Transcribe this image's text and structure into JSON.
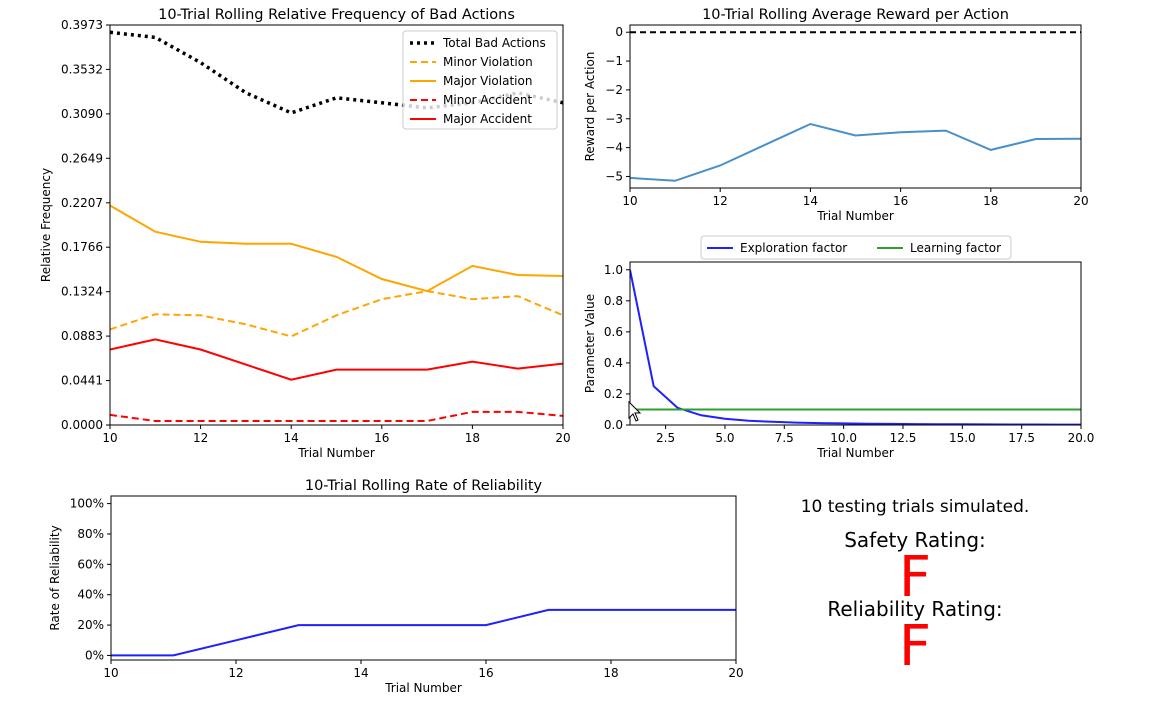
{
  "chart_data": [
    {
      "id": "bad_actions",
      "type": "line",
      "title": "10-Trial Rolling Relative Frequency of Bad Actions",
      "xlabel": "Trial Number",
      "ylabel": "Relative Frequency",
      "xlim": [
        10,
        20
      ],
      "ylim": [
        0,
        0.3973
      ],
      "xticks": [
        10,
        12,
        14,
        16,
        18,
        20
      ],
      "yticks": [
        "0.0000",
        "0.0441",
        "0.0883",
        "0.1324",
        "0.1766",
        "0.2207",
        "0.2649",
        "0.3090",
        "0.3532",
        "0.3973"
      ],
      "legend_position": "top-right",
      "x": [
        10,
        11,
        12,
        13,
        14,
        15,
        16,
        17,
        18,
        19,
        20
      ],
      "series": [
        {
          "name": "Total Bad Actions",
          "color": "#000000",
          "style": "dotted",
          "values": [
            0.39,
            0.385,
            0.36,
            0.33,
            0.31,
            0.325,
            0.32,
            0.315,
            0.32,
            0.33,
            0.32
          ]
        },
        {
          "name": "Minor Violation",
          "color": "#ffa500",
          "style": "dashed",
          "values": [
            0.095,
            0.11,
            0.109,
            0.1,
            0.088,
            0.109,
            0.125,
            0.133,
            0.125,
            0.128,
            0.109
          ]
        },
        {
          "name": "Major Violation",
          "color": "#ffa500",
          "style": "solid",
          "values": [
            0.218,
            0.192,
            0.182,
            0.18,
            0.18,
            0.167,
            0.145,
            0.133,
            0.158,
            0.149,
            0.148
          ]
        },
        {
          "name": "Minor Accident",
          "color": "#ff0000",
          "style": "dashed",
          "values": [
            0.01,
            0.004,
            0.004,
            0.004,
            0.004,
            0.004,
            0.004,
            0.004,
            0.013,
            0.013,
            0.009
          ]
        },
        {
          "name": "Major Accident",
          "color": "#ff0000",
          "style": "solid",
          "values": [
            0.075,
            0.085,
            0.075,
            0.06,
            0.045,
            0.055,
            0.055,
            0.055,
            0.063,
            0.056,
            0.061
          ]
        }
      ]
    },
    {
      "id": "reward",
      "type": "line",
      "title": "10-Trial Rolling Average Reward per Action",
      "xlabel": "Trial Number",
      "ylabel": "Reward per Action",
      "xlim": [
        10,
        20
      ],
      "ylim": [
        -5.4,
        0.25
      ],
      "xticks": [
        10,
        12,
        14,
        16,
        18,
        20
      ],
      "yticks": [
        0,
        -1,
        -2,
        -3,
        -4,
        -5
      ],
      "baseline": 0,
      "x": [
        10,
        11,
        12,
        13,
        14,
        15,
        16,
        17,
        18,
        19,
        20
      ],
      "series": [
        {
          "name": "Reward",
          "color": "#4a90c8",
          "values": [
            -5.05,
            -5.15,
            -4.62,
            -3.9,
            -3.18,
            -3.58,
            -3.47,
            -3.41,
            -4.08,
            -3.7,
            -3.69
          ]
        }
      ]
    },
    {
      "id": "parameters",
      "type": "line",
      "title": "",
      "xlabel": "Trial Number",
      "ylabel": "Parameter Value",
      "xlim": [
        1,
        20
      ],
      "ylim": [
        0,
        1.05
      ],
      "xticks": [
        "2.5",
        "5.0",
        "7.5",
        "10.0",
        "12.5",
        "15.0",
        "17.5",
        "20.0"
      ],
      "yticks": [
        "0.0",
        "0.2",
        "0.4",
        "0.6",
        "0.8",
        "1.0"
      ],
      "legend_position": "top-center",
      "x": [
        1,
        2,
        3,
        4,
        5,
        6,
        7,
        8,
        9,
        10,
        11,
        12,
        13,
        14,
        15,
        16,
        17,
        18,
        19,
        20
      ],
      "series": [
        {
          "name": "Exploration factor",
          "color": "#1f1fff",
          "values": [
            1.0,
            0.25,
            0.111,
            0.0625,
            0.04,
            0.0278,
            0.0204,
            0.0156,
            0.0123,
            0.01,
            0.0083,
            0.0069,
            0.0059,
            0.0051,
            0.0044,
            0.0039,
            0.0035,
            0.0031,
            0.0028,
            0.0025
          ]
        },
        {
          "name": "Learning factor",
          "color": "#2ca02c",
          "values": [
            0.1,
            0.1,
            0.1,
            0.1,
            0.1,
            0.1,
            0.1,
            0.1,
            0.1,
            0.1,
            0.1,
            0.1,
            0.1,
            0.1,
            0.1,
            0.1,
            0.1,
            0.1,
            0.1,
            0.1
          ]
        }
      ]
    },
    {
      "id": "reliability",
      "type": "line",
      "title": "10-Trial Rolling Rate of Reliability",
      "xlabel": "Trial Number",
      "ylabel": "Rate of Reliability",
      "xlim": [
        10,
        20
      ],
      "ylim": [
        -3,
        105
      ],
      "xticks": [
        10,
        12,
        14,
        16,
        18,
        20
      ],
      "yticks": [
        "0%",
        "20%",
        "40%",
        "60%",
        "80%",
        "100%"
      ],
      "x": [
        10,
        11,
        12,
        13,
        14,
        15,
        16,
        17,
        18,
        19,
        20
      ],
      "series": [
        {
          "name": "Reliability",
          "color": "#1f1fff",
          "values": [
            0,
            0,
            10,
            20,
            20,
            20,
            20,
            30,
            30,
            30,
            30
          ]
        }
      ]
    }
  ],
  "summary": {
    "trials_text": "10 testing trials simulated.",
    "safety_label": "Safety Rating:",
    "safety_grade": "F",
    "reliability_label": "Reliability Rating:",
    "reliability_grade": "F"
  }
}
